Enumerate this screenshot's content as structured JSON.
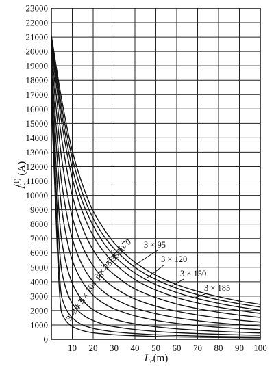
{
  "chart_data": {
    "type": "line",
    "xlabel": "L",
    "xlabel_sub": "c",
    "xlabel_unit": "(m)",
    "ylabel": "I",
    "ylabel_sub": "d",
    "ylabel_sup": "(1)",
    "ylabel_unit": "(A)",
    "xlim": [
      0,
      100
    ],
    "ylim": [
      0,
      23000
    ],
    "x_ticks": [
      10,
      20,
      30,
      40,
      50,
      60,
      70,
      80,
      90,
      100
    ],
    "y_ticks": [
      0,
      1000,
      2000,
      3000,
      4000,
      5000,
      6000,
      7000,
      8000,
      9000,
      10000,
      11000,
      12000,
      13000,
      14000,
      15000,
      16000,
      17000,
      18000,
      19000,
      20000,
      21000,
      22000,
      23000
    ],
    "grid": true,
    "x": [
      0,
      5,
      10,
      15,
      20,
      25,
      30,
      40,
      50,
      60,
      70,
      80,
      90,
      100
    ],
    "series": [
      {
        "name": "3×4",
        "values": [
          16300,
          1800,
          900,
          600,
          450,
          380,
          320,
          250,
          200,
          170,
          150,
          130,
          115,
          100
        ]
      },
      {
        "name": "3×6",
        "values": [
          16700,
          2900,
          1500,
          1000,
          760,
          620,
          520,
          400,
          320,
          270,
          230,
          200,
          180,
          160
        ]
      },
      {
        "name": "3×10",
        "values": [
          17200,
          4700,
          2500,
          1700,
          1300,
          1050,
          880,
          680,
          550,
          460,
          400,
          350,
          310,
          280
        ]
      },
      {
        "name": "3×16",
        "values": [
          17700,
          6800,
          3900,
          2700,
          2050,
          1670,
          1400,
          1070,
          870,
          730,
          630,
          550,
          490,
          440
        ]
      },
      {
        "name": "3×25",
        "values": [
          18300,
          9000,
          5500,
          3950,
          3050,
          2500,
          2120,
          1630,
          1320,
          1110,
          960,
          840,
          750,
          680
        ]
      },
      {
        "name": "3×35",
        "values": [
          18800,
          10800,
          7000,
          5100,
          4000,
          3300,
          2820,
          2180,
          1780,
          1500,
          1300,
          1140,
          1020,
          920
        ]
      },
      {
        "name": "3×50",
        "values": [
          19400,
          12500,
          8500,
          6400,
          5100,
          4200,
          3600,
          2800,
          2300,
          1950,
          1690,
          1490,
          1330,
          1200
        ]
      },
      {
        "name": "3×70",
        "values": [
          19900,
          13900,
          10000,
          7700,
          6200,
          5200,
          4500,
          3500,
          2900,
          2450,
          2130,
          1880,
          1680,
          1520
        ]
      },
      {
        "name": "3×95",
        "values": [
          20300,
          15000,
          11200,
          8800,
          7200,
          6100,
          5300,
          4150,
          3420,
          2900,
          2520,
          2230,
          2000,
          1800
        ]
      },
      {
        "name": "3×120",
        "values": [
          20600,
          15600,
          11900,
          9500,
          7900,
          6700,
          5800,
          4600,
          3800,
          3250,
          2830,
          2500,
          2240,
          2020
        ]
      },
      {
        "name": "3×150",
        "values": [
          20900,
          16100,
          12600,
          10100,
          8400,
          7200,
          6300,
          5000,
          4150,
          3550,
          3100,
          2750,
          2470,
          2240
        ]
      },
      {
        "name": "3×185",
        "values": [
          21100,
          16600,
          13100,
          10700,
          8900,
          7700,
          6700,
          5350,
          4450,
          3800,
          3330,
          2960,
          2660,
          2420
        ]
      }
    ]
  }
}
